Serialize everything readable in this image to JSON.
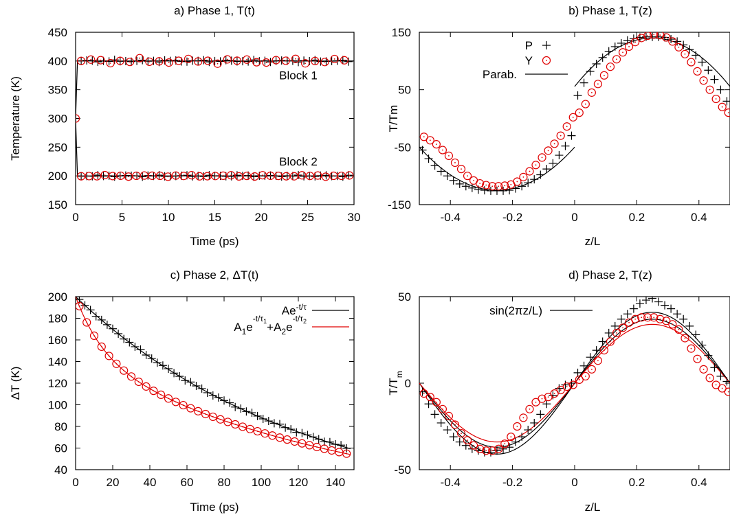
{
  "chart_data": [
    {
      "type": "scatter",
      "title": "a) Phase 1, T(t)",
      "xlabel": "Time (ps)",
      "ylabel": "Temperature (K)",
      "xlim": [
        0,
        30
      ],
      "ylim": [
        150,
        450
      ],
      "xticks": [
        0,
        5,
        10,
        15,
        20,
        25,
        30
      ],
      "yticks": [
        150,
        200,
        250,
        300,
        350,
        400,
        450
      ],
      "annotations": [
        {
          "text": "Block 1",
          "x": 24,
          "y": 368
        },
        {
          "text": "Block 2",
          "x": 24,
          "y": 218
        }
      ],
      "series": [
        {
          "id": "b1-line",
          "color": "#000000",
          "style": "line",
          "x": [
            0,
            0.2,
            30
          ],
          "y": [
            300,
            400,
            400
          ]
        },
        {
          "id": "b2-line",
          "color": "#000000",
          "style": "line",
          "x": [
            0,
            0.2,
            30
          ],
          "y": [
            300,
            200,
            200
          ]
        },
        {
          "id": "b1-plus",
          "color": "#000000",
          "style": "plus",
          "gen": "const",
          "x0": 0.6,
          "dx": 0.6,
          "n": 49,
          "c": 400,
          "amp": 2
        },
        {
          "id": "b1-circ",
          "color": "#e00000",
          "style": "circle",
          "gen": "const",
          "x0": 0.6,
          "dx": 1.05,
          "n": 28,
          "c": 400,
          "amp": 5
        },
        {
          "id": "b2-plus",
          "color": "#000000",
          "style": "plus",
          "gen": "const",
          "x0": 0.6,
          "dx": 0.6,
          "n": 49,
          "c": 200,
          "amp": 1.5
        },
        {
          "id": "b2-circ",
          "color": "#e00000",
          "style": "circle",
          "gen": "const",
          "x0": 0.6,
          "dx": 0.85,
          "n": 35,
          "c": 200,
          "amp": 1.5
        },
        {
          "id": "start-circ",
          "color": "#e00000",
          "style": "circle",
          "x": [
            0
          ],
          "y": [
            300
          ]
        }
      ]
    },
    {
      "type": "scatter",
      "title": "b) Phase 1, T(z)",
      "xlabel": "z/L",
      "ylabel": "T/Tm",
      "xlim": [
        -0.5,
        0.5
      ],
      "ylim": [
        -150,
        150
      ],
      "xticks": [
        -0.4,
        -0.2,
        0,
        0.2,
        0.4
      ],
      "yticks": [
        -150,
        -50,
        50,
        150
      ],
      "legend": [
        {
          "label": "P",
          "style": "plus",
          "color": "#000000"
        },
        {
          "label": "Y",
          "style": "circle",
          "color": "#e00000"
        },
        {
          "label": "Parab.",
          "style": "line",
          "color": "#000000"
        }
      ],
      "series": [
        {
          "id": "parab-left",
          "color": "#000000",
          "style": "line",
          "gen": "parab",
          "x0": -0.5,
          "x1": 0.0,
          "vx": -0.25,
          "vy": -125,
          "k": 1200
        },
        {
          "id": "parab-right",
          "color": "#000000",
          "style": "line",
          "gen": "parab",
          "x0": 0.0,
          "x1": 0.5,
          "vx": 0.25,
          "vy": 140,
          "k": -1350
        },
        {
          "id": "P",
          "color": "#000000",
          "style": "plus",
          "x": [
            -0.49,
            -0.47,
            -0.45,
            -0.43,
            -0.41,
            -0.39,
            -0.37,
            -0.35,
            -0.33,
            -0.31,
            -0.29,
            -0.27,
            -0.25,
            -0.23,
            -0.21,
            -0.19,
            -0.17,
            -0.15,
            -0.13,
            -0.11,
            -0.09,
            -0.07,
            -0.05,
            -0.03,
            -0.01,
            0.01,
            0.03,
            0.05,
            0.07,
            0.09,
            0.11,
            0.13,
            0.15,
            0.17,
            0.19,
            0.21,
            0.23,
            0.25,
            0.27,
            0.29,
            0.31,
            0.33,
            0.35,
            0.37,
            0.39,
            0.41,
            0.43,
            0.45,
            0.47,
            0.49
          ],
          "y": [
            -55,
            -70,
            -82,
            -92,
            -100,
            -108,
            -114,
            -118,
            -121,
            -124,
            -125,
            -126,
            -126,
            -126,
            -125,
            -122,
            -118,
            -112,
            -106,
            -98,
            -88,
            -78,
            -64,
            -48,
            -30,
            40,
            62,
            82,
            95,
            106,
            117,
            125,
            131,
            136,
            139,
            141,
            142,
            142,
            142,
            141,
            138,
            134,
            128,
            120,
            110,
            98,
            84,
            68,
            50,
            30
          ]
        },
        {
          "id": "Y",
          "color": "#e00000",
          "style": "circle",
          "x": [
            -0.485,
            -0.465,
            -0.445,
            -0.425,
            -0.405,
            -0.385,
            -0.365,
            -0.345,
            -0.325,
            -0.305,
            -0.285,
            -0.265,
            -0.245,
            -0.225,
            -0.205,
            -0.185,
            -0.165,
            -0.145,
            -0.125,
            -0.105,
            -0.085,
            -0.065,
            -0.045,
            -0.025,
            -0.005,
            0.015,
            0.035,
            0.055,
            0.075,
            0.095,
            0.115,
            0.135,
            0.155,
            0.175,
            0.195,
            0.215,
            0.235,
            0.255,
            0.275,
            0.295,
            0.315,
            0.335,
            0.355,
            0.375,
            0.395,
            0.415,
            0.435,
            0.455,
            0.475,
            0.495
          ],
          "y": [
            -32,
            -38,
            -45,
            -55,
            -65,
            -77,
            -88,
            -100,
            -108,
            -113,
            -116,
            -118,
            -118,
            -117,
            -115,
            -110,
            -102,
            -92,
            -81,
            -68,
            -56,
            -44,
            -30,
            -14,
            2,
            10,
            25,
            45,
            60,
            75,
            90,
            103,
            115,
            125,
            133,
            140,
            144,
            146,
            145,
            141,
            134,
            124,
            112,
            98,
            82,
            66,
            50,
            34,
            20,
            10
          ]
        }
      ]
    },
    {
      "type": "scatter",
      "title": "c) Phase 2, ΔT(t)",
      "xlabel": "Time (ps)",
      "ylabel": "ΔT (K)",
      "xlim": [
        0,
        150
      ],
      "ylim": [
        40,
        200
      ],
      "xticks": [
        0,
        20,
        40,
        60,
        80,
        100,
        120,
        140
      ],
      "yticks": [
        40,
        60,
        80,
        100,
        120,
        140,
        160,
        180,
        200
      ],
      "legend": [
        {
          "label": "Ae",
          "sup": "-t/τ",
          "color": "#000000"
        },
        {
          "label": "A",
          "sub": "1",
          "label2": "e",
          "sup": "-t/τ",
          "supsub": "1",
          "plus": "+A",
          "sub2": "2",
          "label3": "e",
          "sup2": "-t/τ",
          "supsub2": "2",
          "color": "#e00000"
        }
      ],
      "series": [
        {
          "id": "single-exp",
          "color": "#000000",
          "style": "line",
          "gen": "exp1",
          "A": 200,
          "tau": 122,
          "x0": 0,
          "x1": 148
        },
        {
          "id": "double-exp",
          "color": "#e00000",
          "style": "line",
          "gen": "exp2",
          "A1": 55,
          "t1": 15,
          "A2": 145,
          "t2": 150,
          "x0": 0,
          "x1": 148
        },
        {
          "id": "plus",
          "color": "#000000",
          "style": "plus",
          "gen": "exp1pts",
          "A": 200,
          "tau": 122,
          "x0": 2,
          "dx": 3,
          "n": 49
        },
        {
          "id": "circ",
          "color": "#e00000",
          "style": "circle",
          "gen": "exp2pts",
          "A1": 55,
          "t1": 15,
          "A2": 145,
          "t2": 150,
          "x0": 2,
          "dx": 4,
          "n": 37
        }
      ]
    },
    {
      "type": "scatter",
      "title": "d) Phase 2, T(z)",
      "xlabel": "z/L",
      "ylabel": "T/T",
      "ylabel_sub": "m",
      "xlim": [
        -0.5,
        0.5
      ],
      "ylim": [
        -50,
        50
      ],
      "xticks": [
        -0.4,
        -0.2,
        0,
        0.2,
        0.4
      ],
      "yticks": [
        -50,
        0,
        50
      ],
      "legend": [
        {
          "label": "sin(2πz/L)",
          "style": "line",
          "color": "#000000"
        }
      ],
      "series": [
        {
          "id": "sin-black",
          "color": "#000000",
          "style": "line",
          "gen": "sin",
          "amp": 41,
          "x0": -0.5,
          "x1": 0.5
        },
        {
          "id": "sin-black2",
          "color": "#000000",
          "style": "line",
          "gen": "sin",
          "amp": 37,
          "x0": -0.5,
          "x1": 0.5
        },
        {
          "id": "sin-red",
          "color": "#e00000",
          "style": "line",
          "gen": "sin",
          "amp": 34,
          "x0": -0.5,
          "x1": 0.5
        },
        {
          "id": "P",
          "color": "#000000",
          "style": "plus",
          "x": [
            -0.49,
            -0.47,
            -0.45,
            -0.43,
            -0.41,
            -0.39,
            -0.37,
            -0.35,
            -0.33,
            -0.31,
            -0.29,
            -0.27,
            -0.25,
            -0.23,
            -0.21,
            -0.19,
            -0.17,
            -0.15,
            -0.13,
            -0.11,
            -0.09,
            -0.07,
            -0.05,
            -0.03,
            -0.01,
            0.01,
            0.03,
            0.05,
            0.07,
            0.09,
            0.11,
            0.13,
            0.15,
            0.17,
            0.19,
            0.21,
            0.23,
            0.25,
            0.27,
            0.29,
            0.31,
            0.33,
            0.35,
            0.37,
            0.39,
            0.41,
            0.43,
            0.45,
            0.47,
            0.49
          ],
          "y": [
            -5,
            -12,
            -18,
            -23,
            -27,
            -31,
            -34,
            -36,
            -38,
            -39,
            -40,
            -40,
            -39,
            -38,
            -37,
            -34,
            -31,
            -27,
            -23,
            -18,
            -12,
            -7,
            -3,
            -1,
            0,
            6,
            10,
            15,
            19,
            24,
            29,
            33,
            37,
            40,
            43,
            46,
            48,
            49,
            47,
            45,
            43,
            40,
            37,
            33,
            28,
            22,
            16,
            9,
            4,
            1
          ]
        },
        {
          "id": "Y",
          "color": "#e00000",
          "style": "circle",
          "x": [
            -0.485,
            -0.465,
            -0.445,
            -0.425,
            -0.405,
            -0.385,
            -0.365,
            -0.345,
            -0.325,
            -0.305,
            -0.285,
            -0.265,
            -0.245,
            -0.225,
            -0.205,
            -0.185,
            -0.165,
            -0.145,
            -0.125,
            -0.105,
            -0.085,
            -0.065,
            -0.045,
            -0.025,
            -0.005,
            0.015,
            0.035,
            0.055,
            0.075,
            0.095,
            0.115,
            0.135,
            0.155,
            0.175,
            0.195,
            0.215,
            0.235,
            0.255,
            0.275,
            0.295,
            0.315,
            0.335,
            0.355,
            0.375,
            0.395,
            0.415,
            0.435,
            0.455,
            0.475,
            0.495
          ],
          "y": [
            -6,
            -8,
            -11,
            -15,
            -19,
            -24,
            -29,
            -33,
            -36,
            -38,
            -39,
            -39,
            -38,
            -35,
            -31,
            -25,
            -20,
            -15,
            -11,
            -9,
            -8,
            -6,
            -4,
            -2,
            -1,
            2,
            4,
            8,
            13,
            19,
            24,
            29,
            32,
            35,
            37,
            38,
            38,
            38,
            37,
            36,
            34,
            31,
            26,
            20,
            14,
            8,
            3,
            -1,
            -3,
            -5
          ]
        }
      ]
    }
  ]
}
